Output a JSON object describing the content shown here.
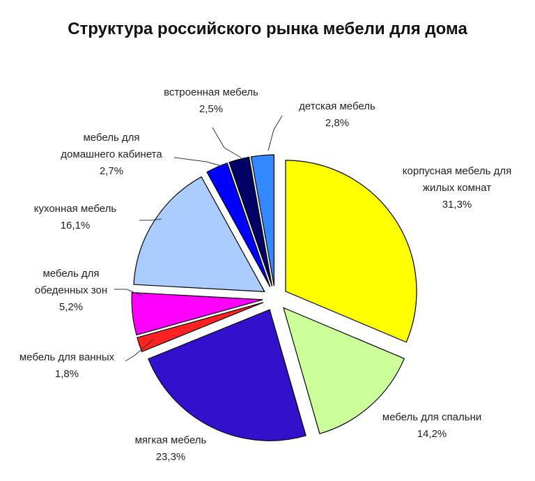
{
  "chart_data": {
    "type": "pie",
    "title": "Структура российского рынка мебели для дома",
    "slices": [
      {
        "name": "корпусная мебель для жилых комнат",
        "label_lines": [
          "корпусная мебель для",
          "жилых комнат"
        ],
        "value": 31.3,
        "value_label": "31,3%",
        "color": "#FFFF00"
      },
      {
        "name": "мебель для спальни",
        "label_lines": [
          "мебель для спальни"
        ],
        "value": 14.2,
        "value_label": "14,2%",
        "color": "#CCFF99"
      },
      {
        "name": "мягкая мебель",
        "label_lines": [
          "мягкая мебель"
        ],
        "value": 23.3,
        "value_label": "23,3%",
        "color": "#3311CC"
      },
      {
        "name": "мебель для ванных",
        "label_lines": [
          "мебель для ванных"
        ],
        "value": 1.8,
        "value_label": "1,8%",
        "color": "#FF2222"
      },
      {
        "name": "мебель для обеденных зон",
        "label_lines": [
          "мебель для",
          "обеденных зон"
        ],
        "value": 5.2,
        "value_label": "5,2%",
        "color": "#FF00FF"
      },
      {
        "name": "кухонная мебель",
        "label_lines": [
          "кухонная мебель"
        ],
        "value": 16.1,
        "value_label": "16,1%",
        "color": "#AACCFF"
      },
      {
        "name": "мебель для домашнего кабинета",
        "label_lines": [
          "мебель для",
          "домашнего кабинета"
        ],
        "value": 2.7,
        "value_label": "2,7%",
        "color": "#0000FF"
      },
      {
        "name": "встроенная мебель",
        "label_lines": [
          "встроенная мебель"
        ],
        "value": 2.5,
        "value_label": "2,5%",
        "color": "#000066"
      },
      {
        "name": "детская мебель",
        "label_lines": [
          "детская мебель"
        ],
        "value": 2.8,
        "value_label": "2,8%",
        "color": "#3388FF"
      }
    ],
    "start_angle_deg": 0,
    "direction": "clockwise",
    "exploded": true,
    "legend": "none",
    "grid": false
  }
}
